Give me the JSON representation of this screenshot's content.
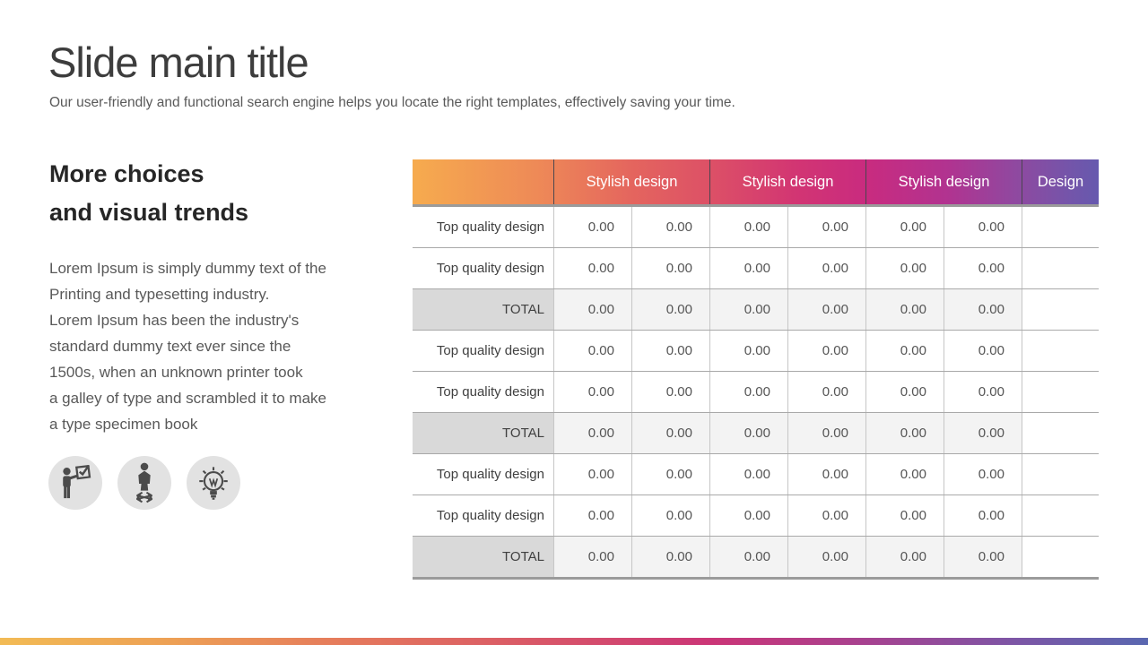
{
  "slide": {
    "title": "Slide main title",
    "subtitle": "Our user-friendly and functional search engine helps you locate the right templates, effectively saving your time."
  },
  "left_panel": {
    "heading": [
      "More choices",
      "and visual trends"
    ],
    "body_lines": [
      "Lorem Ipsum is simply dummy text of the",
      "Printing and typesetting industry.",
      "Lorem Ipsum has been the industry's",
      "standard dummy text ever since the",
      "1500s, when an unknown printer took",
      "a galley of type and scrambled it to make",
      "a type specimen book"
    ],
    "icons": [
      {
        "name": "presenter-checkbox-icon"
      },
      {
        "name": "person-growth-arrows-icon"
      },
      {
        "name": "lightbulb-idea-icon"
      }
    ]
  },
  "table": {
    "header": {
      "groups": [
        "Stylish design",
        "Stylish design",
        "Stylish design"
      ],
      "last_column": "Design"
    },
    "rows": [
      {
        "label": "Top quality design",
        "values": [
          "0.00",
          "0.00",
          "0.00",
          "0.00",
          "0.00",
          "0.00"
        ],
        "design": "",
        "is_total": false
      },
      {
        "label": "Top quality design",
        "values": [
          "0.00",
          "0.00",
          "0.00",
          "0.00",
          "0.00",
          "0.00"
        ],
        "design": "",
        "is_total": false
      },
      {
        "label": "TOTAL",
        "values": [
          "0.00",
          "0.00",
          "0.00",
          "0.00",
          "0.00",
          "0.00"
        ],
        "design": "",
        "is_total": true
      },
      {
        "label": "Top quality design",
        "values": [
          "0.00",
          "0.00",
          "0.00",
          "0.00",
          "0.00",
          "0.00"
        ],
        "design": "",
        "is_total": false
      },
      {
        "label": "Top quality design",
        "values": [
          "0.00",
          "0.00",
          "0.00",
          "0.00",
          "0.00",
          "0.00"
        ],
        "design": "",
        "is_total": false
      },
      {
        "label": "TOTAL",
        "values": [
          "0.00",
          "0.00",
          "0.00",
          "0.00",
          "0.00",
          "0.00"
        ],
        "design": "",
        "is_total": true
      },
      {
        "label": "Top quality design",
        "values": [
          "0.00",
          "0.00",
          "0.00",
          "0.00",
          "0.00",
          "0.00"
        ],
        "design": "",
        "is_total": false
      },
      {
        "label": "Top quality design",
        "values": [
          "0.00",
          "0.00",
          "0.00",
          "0.00",
          "0.00",
          "0.00"
        ],
        "design": "",
        "is_total": false
      },
      {
        "label": "TOTAL",
        "values": [
          "0.00",
          "0.00",
          "0.00",
          "0.00",
          "0.00",
          "0.00"
        ],
        "design": "",
        "is_total": true
      }
    ]
  },
  "colors": {
    "header_gradient": [
      "#F6AB4E",
      "#E4655E",
      "#C92B7F",
      "#8F49A0",
      "#6659AE"
    ],
    "bottom_bar_gradient": [
      "#F2BB55",
      "#DA5B66",
      "#CB3577",
      "#5967B0"
    ],
    "total_label_bg": "#D9D9D9",
    "total_cell_bg": "#F3F3F3",
    "icon_circle_bg": "#E2E2E2"
  }
}
